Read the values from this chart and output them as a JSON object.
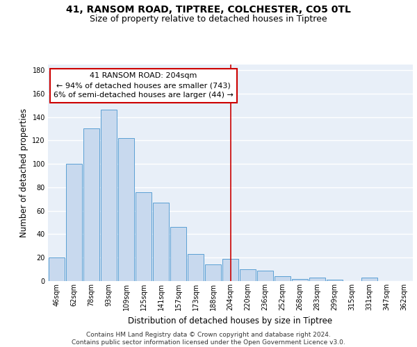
{
  "title_line1": "41, RANSOM ROAD, TIPTREE, COLCHESTER, CO5 0TL",
  "title_line2": "Size of property relative to detached houses in Tiptree",
  "xlabel": "Distribution of detached houses by size in Tiptree",
  "ylabel": "Number of detached properties",
  "categories": [
    "46sqm",
    "62sqm",
    "78sqm",
    "93sqm",
    "109sqm",
    "125sqm",
    "141sqm",
    "157sqm",
    "173sqm",
    "188sqm",
    "204sqm",
    "220sqm",
    "236sqm",
    "252sqm",
    "268sqm",
    "283sqm",
    "299sqm",
    "315sqm",
    "331sqm",
    "347sqm",
    "362sqm"
  ],
  "values": [
    20,
    100,
    130,
    146,
    122,
    76,
    67,
    46,
    23,
    14,
    19,
    10,
    9,
    4,
    2,
    3,
    1,
    0,
    3,
    0,
    0
  ],
  "bar_color": "#c8d9ee",
  "bar_edge_color": "#5a9fd4",
  "vline_index": 10,
  "vline_color": "#cc0000",
  "annotation_title": "41 RANSOM ROAD: 204sqm",
  "annotation_line1": "← 94% of detached houses are smaller (743)",
  "annotation_line2": "6% of semi-detached houses are larger (44) →",
  "annotation_box_color": "#cc0000",
  "ylim": [
    0,
    185
  ],
  "yticks": [
    0,
    20,
    40,
    60,
    80,
    100,
    120,
    140,
    160,
    180
  ],
  "footer_line1": "Contains HM Land Registry data © Crown copyright and database right 2024.",
  "footer_line2": "Contains public sector information licensed under the Open Government Licence v3.0.",
  "bg_color": "#e8eff8",
  "grid_color": "#d0dae8",
  "title_fontsize": 10,
  "subtitle_fontsize": 9,
  "tick_fontsize": 7,
  "footer_fontsize": 6.5,
  "annotation_fontsize": 8
}
